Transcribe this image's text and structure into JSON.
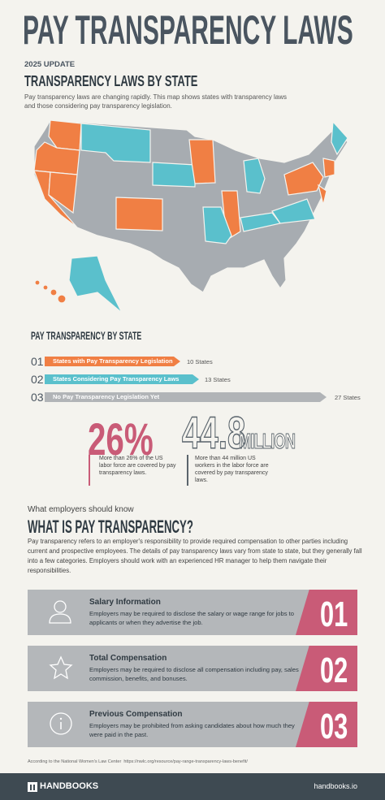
{
  "header": {
    "title": "PAY TRANSPARENCY LAWS",
    "update": "2025 UPDATE",
    "section_title": "TRANSPARENCY LAWS BY STATE",
    "description": "Pay transparency laws are changing rapidly.  This map shows states with transparency laws and those considering pay transparency legislation."
  },
  "legend": {
    "title": "PAY TRANSPARENCY BY STATE",
    "items": [
      {
        "number": "01",
        "label": "States with Pay Transparency Legislation",
        "count": "10 States"
      },
      {
        "number": "02",
        "label": "States Considering Pay Transparency Laws",
        "count": "13 States"
      },
      {
        "number": "03",
        "label": "No Pay Transparency Legislation Yet",
        "count": "27 States"
      }
    ]
  },
  "stats": [
    {
      "value": "26%",
      "text": "More than 26% of the US labor force are covered by pay transparency laws."
    },
    {
      "value": "44.8",
      "unit": "MILLION",
      "text": "More than 44 million US workers in the labor force are covered by pay transparency laws."
    }
  ],
  "intro": {
    "kicker": "What employers should know",
    "title": "WHAT IS PAY TRANSPARENCY?",
    "body": "Pay transparency refers to an employer's responsibility to provide required compensation to other parties including current and prospective employees.  The details of pay transparency laws vary from state to state, but they generally fall into a few categories.  Employers should work with an experienced HR manager to help them navigate their responsibilities."
  },
  "cards": [
    {
      "title": "Salary Information",
      "body": "Employers may be required to disclose the salary or wage range for jobs to applicants or when they advertise the job.",
      "number": "01"
    },
    {
      "title": "Total Compensation",
      "body": "Employers may be required to disclose all compensation including pay, sales commission, benefits, and bonuses.",
      "number": "02"
    },
    {
      "title": "Previous Compensation",
      "body": "Employers may be prohibited from asking candidates about how much they were paid in the past.",
      "number": "03"
    }
  ],
  "footnote": "According to the National Women's Law Center  https://nwlc.org/resource/pay-range-transparency-laws-benefit/",
  "footer": {
    "brand": "HANDBOOKS",
    "url": "handbooks.io"
  }
}
